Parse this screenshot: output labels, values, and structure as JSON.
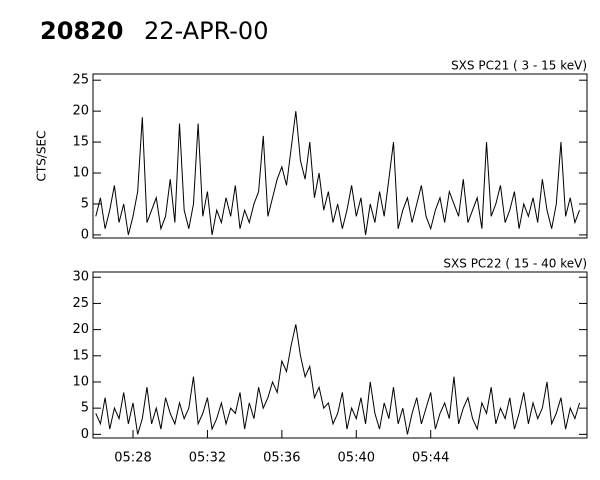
{
  "header": {
    "id": "20820",
    "date": "22-APR-00"
  },
  "chart_data": [
    {
      "type": "line",
      "title": "SXS PC21  (  3 - 15 keV)",
      "ylabel": "CTS/SEC",
      "color": "#000000",
      "xlim": [
        25.85,
        52.4
      ],
      "ylim": [
        -0.5,
        26
      ],
      "yticks": [
        0,
        5,
        10,
        15,
        20,
        25
      ],
      "x": [
        26,
        26.25,
        26.5,
        26.75,
        27,
        27.25,
        27.5,
        27.75,
        28,
        28.25,
        28.5,
        28.75,
        29,
        29.25,
        29.5,
        29.75,
        30,
        30.25,
        30.5,
        30.75,
        31,
        31.25,
        31.5,
        31.75,
        32,
        32.25,
        32.5,
        32.75,
        33,
        33.25,
        33.5,
        33.75,
        34,
        34.25,
        34.5,
        34.75,
        35,
        35.25,
        35.5,
        35.75,
        36,
        36.25,
        36.5,
        36.75,
        37,
        37.25,
        37.5,
        37.75,
        38,
        38.25,
        38.5,
        38.75,
        39,
        39.25,
        39.5,
        39.75,
        40,
        40.25,
        40.5,
        40.75,
        41,
        41.25,
        41.5,
        41.75,
        42,
        42.25,
        42.5,
        42.75,
        43,
        43.25,
        43.5,
        43.75,
        44,
        44.25,
        44.5,
        44.75,
        45,
        45.25,
        45.5,
        45.75,
        46,
        46.25,
        46.5,
        46.75,
        47,
        47.25,
        47.5,
        47.75,
        48,
        48.25,
        48.5,
        48.75,
        49,
        49.25,
        49.5,
        49.75,
        50,
        50.25,
        50.5,
        50.75,
        51,
        51.25,
        51.5,
        51.75,
        52
      ],
      "values": [
        3,
        6,
        1,
        4,
        8,
        2,
        5,
        0,
        3,
        7,
        19,
        2,
        4,
        6,
        1,
        3,
        9,
        2,
        18,
        4,
        1,
        5,
        18,
        3,
        7,
        0,
        4,
        2,
        6,
        3,
        8,
        1,
        4,
        2,
        5,
        7,
        16,
        3,
        6,
        9,
        11,
        8,
        14,
        20,
        12,
        9,
        15,
        6,
        10,
        4,
        7,
        2,
        5,
        1,
        4,
        8,
        3,
        6,
        0,
        5,
        2,
        7,
        3,
        9,
        15,
        1,
        4,
        6,
        2,
        5,
        8,
        3,
        1,
        4,
        6,
        2,
        7,
        5,
        3,
        9,
        2,
        4,
        6,
        1,
        15,
        3,
        5,
        8,
        2,
        4,
        7,
        1,
        5,
        3,
        6,
        2,
        9,
        4,
        1,
        5,
        15,
        3,
        6,
        2,
        4
      ]
    },
    {
      "type": "line",
      "title": "SXS PC22  ( 15 - 40 keV)",
      "color": "#000000",
      "xlim": [
        25.85,
        52.4
      ],
      "ylim": [
        -0.7,
        31
      ],
      "yticks": [
        0,
        5,
        10,
        15,
        20,
        25,
        30
      ],
      "xticks": [
        {
          "value": 28,
          "label": "05:28"
        },
        {
          "value": 32,
          "label": "05:32"
        },
        {
          "value": 36,
          "label": "05:36"
        },
        {
          "value": 40,
          "label": "05:40"
        },
        {
          "value": 44,
          "label": "05:44"
        }
      ],
      "x": [
        26,
        26.25,
        26.5,
        26.75,
        27,
        27.25,
        27.5,
        27.75,
        28,
        28.25,
        28.5,
        28.75,
        29,
        29.25,
        29.5,
        29.75,
        30,
        30.25,
        30.5,
        30.75,
        31,
        31.25,
        31.5,
        31.75,
        32,
        32.25,
        32.5,
        32.75,
        33,
        33.25,
        33.5,
        33.75,
        34,
        34.25,
        34.5,
        34.75,
        35,
        35.25,
        35.5,
        35.75,
        36,
        36.25,
        36.5,
        36.75,
        37,
        37.25,
        37.5,
        37.75,
        38,
        38.25,
        38.5,
        38.75,
        39,
        39.25,
        39.5,
        39.75,
        40,
        40.25,
        40.5,
        40.75,
        41,
        41.25,
        41.5,
        41.75,
        42,
        42.25,
        42.5,
        42.75,
        43,
        43.25,
        43.5,
        43.75,
        44,
        44.25,
        44.5,
        44.75,
        45,
        45.25,
        45.5,
        45.75,
        46,
        46.25,
        46.5,
        46.75,
        47,
        47.25,
        47.5,
        47.75,
        48,
        48.25,
        48.5,
        48.75,
        49,
        49.25,
        49.5,
        49.75,
        50,
        50.25,
        50.5,
        50.75,
        51,
        51.25,
        51.5,
        51.75,
        52
      ],
      "values": [
        4,
        2,
        7,
        1,
        5,
        3,
        8,
        2,
        6,
        0,
        3,
        9,
        2,
        5,
        1,
        7,
        4,
        2,
        6,
        3,
        5,
        11,
        2,
        4,
        7,
        1,
        3,
        6,
        2,
        5,
        4,
        8,
        1,
        6,
        3,
        9,
        5,
        7,
        10,
        8,
        14,
        12,
        17,
        21,
        15,
        11,
        13,
        7,
        9,
        5,
        6,
        2,
        4,
        8,
        1,
        5,
        3,
        7,
        2,
        10,
        4,
        1,
        6,
        3,
        9,
        2,
        5,
        0,
        4,
        7,
        2,
        5,
        8,
        1,
        4,
        6,
        3,
        11,
        2,
        5,
        7,
        3,
        1,
        6,
        4,
        9,
        2,
        5,
        3,
        7,
        1,
        4,
        8,
        2,
        6,
        3,
        5,
        10,
        2,
        4,
        7,
        1,
        5,
        3,
        6
      ]
    }
  ]
}
